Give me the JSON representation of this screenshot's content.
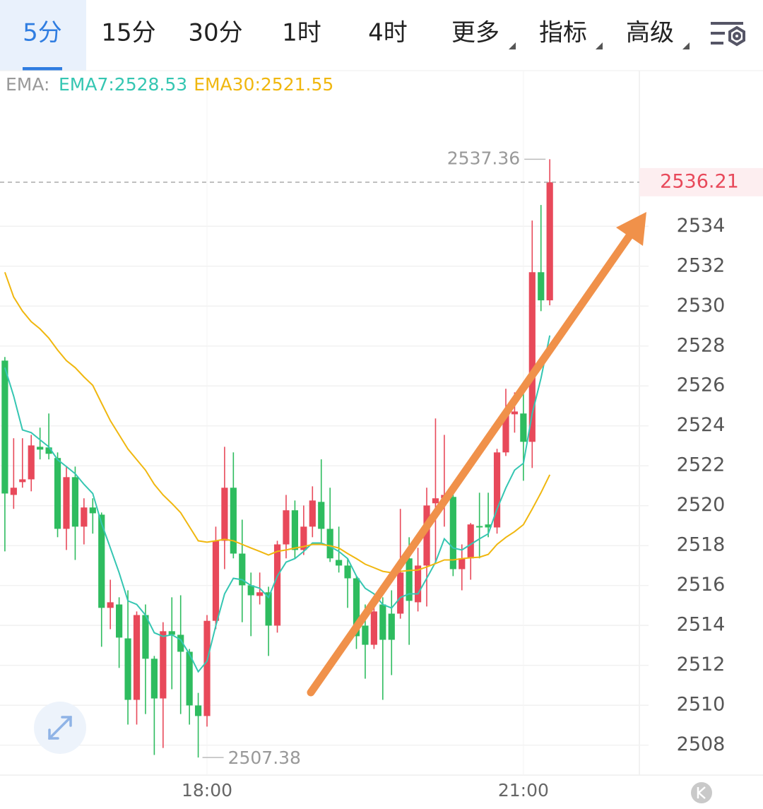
{
  "chart_data": {
    "type": "candlestick",
    "tabs": [
      "5分",
      "15分",
      "30分",
      "1时",
      "4时",
      "更多",
      "指标",
      "高级"
    ],
    "selected_tab": 0,
    "indicator_label": "EMA:",
    "categories": [
      null,
      null,
      null,
      null,
      null,
      null,
      null,
      null,
      null,
      null,
      null,
      null,
      null,
      null,
      null,
      null,
      null,
      null,
      null,
      null,
      null,
      null,
      null,
      "18:00",
      null,
      null,
      null,
      null,
      null,
      null,
      null,
      null,
      null,
      null,
      null,
      null,
      null,
      null,
      null,
      null,
      null,
      null,
      null,
      null,
      null,
      null,
      null,
      null,
      null,
      null,
      null,
      null,
      null,
      null,
      null,
      null,
      null,
      null,
      null,
      "21:00",
      null,
      null,
      null
    ],
    "open": [
      2527.27,
      2520.54,
      2521.18,
      2521.32,
      2522.95,
      2522.92,
      2522.39,
      2518.84,
      2521.43,
      2518.95,
      2519.91,
      2519.55,
      2514.88,
      2515.05,
      2513.35,
      2510.27,
      2514.52,
      2512.33,
      2510.34,
      2513.71,
      2513.53,
      2512.68,
      2509.99,
      2509.46,
      2514.23,
      2518.24,
      2520.9,
      2517.6,
      2516.01,
      2515.48,
      2515.66,
      2513.99,
      2518.06,
      2519.77,
      2517.78,
      2518.95,
      2520.19,
      2518.84,
      2517.28,
      2517.0,
      2516.36,
      2513.99,
      2513.03,
      2515.05,
      2514.59,
      2514.59,
      2517.36,
      2515.16,
      2517.0,
      2520.12,
      2520.37,
      2520.44,
      2516.82,
      2517.36,
      2518.98,
      2519.06,
      2518.91,
      2522.67,
      2524.58,
      2524.62,
      2523.2,
      2531.7,
      2530.29
    ],
    "high": [
      2527.45,
      2523.38,
      2523.38,
      2523.55,
      2523.91,
      2524.62,
      2522.67,
      2521.96,
      2521.96,
      2520.37,
      2520.37,
      2519.66,
      2516.29,
      2515.41,
      2515.76,
      2514.7,
      2515.05,
      2512.47,
      2514.16,
      2515.41,
      2515.51,
      2512.82,
      2510.62,
      2514.52,
      2518.95,
      2522.95,
      2522.67,
      2519.3,
      2516.65,
      2516.65,
      2515.94,
      2518.24,
      2520.54,
      2520.26,
      2520.01,
      2520.97,
      2522.32,
      2520.9,
      2518.95,
      2517.36,
      2516.47,
      2515.05,
      2515.05,
      2515.41,
      2515.76,
      2519.84,
      2518.42,
      2517.89,
      2520.9,
      2524.37,
      2523.55,
      2520.61,
      2518.06,
      2519.13,
      2520.65,
      2520.65,
      2522.85,
      2525.86,
      2525.68,
      2525.68,
      2534.29,
      2535.07,
      2537.36
    ],
    "low": [
      2517.71,
      2519.84,
      2520.9,
      2520.72,
      2522.32,
      2522.32,
      2518.42,
      2517.78,
      2517.28,
      2518.06,
      2518.6,
      2512.93,
      2513.81,
      2511.87,
      2509.03,
      2509.03,
      2509.56,
      2507.51,
      2507.86,
      2510.8,
      2509.56,
      2509.03,
      2507.38,
      2508.93,
      2513.81,
      2516.82,
      2517.36,
      2514.16,
      2513.46,
      2515.05,
      2512.47,
      2513.64,
      2517.36,
      2517.36,
      2517.53,
      2518.42,
      2518.06,
      2517.18,
      2516.65,
      2514.88,
      2512.82,
      2511.33,
      2512.82,
      2510.27,
      2511.51,
      2514.34,
      2513.03,
      2514.7,
      2514.95,
      2517.18,
      2518.95,
      2516.47,
      2515.76,
      2516.29,
      2517.36,
      2518.42,
      2518.6,
      2522.49,
      2523.66,
      2521.25,
      2521.89,
      2529.75,
      2530.04
    ],
    "close": [
      2520.61,
      2520.9,
      2521.32,
      2523.02,
      2522.81,
      2522.6,
      2518.84,
      2521.43,
      2518.95,
      2519.91,
      2519.62,
      2514.88,
      2515.16,
      2513.39,
      2510.27,
      2514.52,
      2512.33,
      2510.34,
      2513.71,
      2513.53,
      2512.68,
      2509.99,
      2509.46,
      2514.23,
      2518.24,
      2520.9,
      2517.6,
      2516.01,
      2515.51,
      2515.66,
      2513.99,
      2518.06,
      2519.77,
      2517.78,
      2518.95,
      2520.26,
      2518.84,
      2517.36,
      2517.0,
      2516.36,
      2513.46,
      2513.03,
      2514.7,
      2513.28,
      2513.28,
      2516.65,
      2515.23,
      2517.0,
      2520.01,
      2520.37,
      2520.54,
      2516.82,
      2517.36,
      2519.06,
      2518.91,
      2518.91,
      2522.67,
      2524.69,
      2524.72,
      2523.2,
      2531.7,
      2530.29,
      2536.21
    ],
    "up_color": "#e8495a",
    "down_color": "#2ebc5f",
    "series": [
      {
        "legend": "EMA7:2528.53",
        "color": "#35c6b2",
        "values": [
          2526.92,
          2525.5,
          2523.8,
          2523.66,
          2523.3,
          2522.95,
          2522.31,
          2521.96,
          2521.6,
          2521.07,
          2520.61,
          2519.12,
          2517.88,
          2516.64,
          2515.23,
          2515.05,
          2514.52,
          2513.63,
          2513.45,
          2513.53,
          2513.28,
          2512.57,
          2511.68,
          2512.21,
          2513.99,
          2515.58,
          2516.36,
          2516.29,
          2516.0,
          2515.86,
          2515.4,
          2516.47,
          2517.17,
          2517.35,
          2517.71,
          2518.13,
          2518.13,
          2517.95,
          2517.71,
          2517.35,
          2516.47,
          2515.86,
          2515.58,
          2515.05,
          2514.87,
          2515.4,
          2515.58,
          2515.58,
          2516.36,
          2517.17,
          2518.34,
          2517.88,
          2517.78,
          2518.06,
          2518.34,
          2518.59,
          2519.83,
          2520.89,
          2521.78,
          2522.13,
          2524.61,
          2526.38,
          2528.53
        ]
      },
      {
        "legend": "EMA30:2521.55",
        "color": "#f0b70f",
        "values": [
          2531.7,
          2530.46,
          2529.75,
          2529.22,
          2528.86,
          2528.4,
          2527.8,
          2527.27,
          2526.92,
          2526.45,
          2526.03,
          2525.14,
          2524.26,
          2523.55,
          2522.84,
          2522.31,
          2521.78,
          2521.07,
          2520.54,
          2520.11,
          2519.65,
          2518.95,
          2518.24,
          2518.17,
          2518.24,
          2518.31,
          2518.24,
          2518.06,
          2517.88,
          2517.71,
          2517.53,
          2517.71,
          2517.78,
          2517.88,
          2517.95,
          2518.06,
          2518.06,
          2517.99,
          2517.88,
          2517.6,
          2517.35,
          2517.07,
          2516.89,
          2516.71,
          2516.64,
          2516.71,
          2516.75,
          2516.78,
          2516.93,
          2517.1,
          2517.28,
          2517.28,
          2517.35,
          2517.39,
          2517.42,
          2517.56,
          2518.06,
          2518.41,
          2518.7,
          2519.05,
          2519.83,
          2520.65,
          2521.55
        ]
      }
    ],
    "ylim": [
      2506.5,
      2541.8
    ],
    "yticks": [
      2508,
      2510,
      2512,
      2514,
      2516,
      2518,
      2520,
      2522,
      2524,
      2526,
      2528,
      2530,
      2532,
      2534
    ],
    "grid": true,
    "last_price": 2536.21,
    "high_label": 2537.36,
    "low_label": 2507.38
  }
}
